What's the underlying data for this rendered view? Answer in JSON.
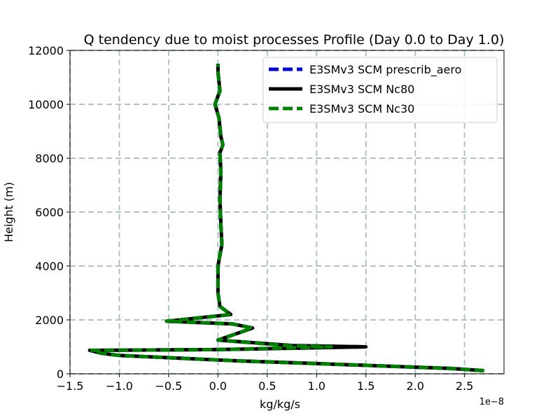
{
  "chart_data": {
    "type": "line",
    "title": "Q tendency due to moist processes Profile (Day 0.0 to Day 1.0)",
    "xlabel": "kg/kg/s",
    "ylabel": "Height (m)",
    "x_offset_label": "1e−8",
    "x_scale": 1e-08,
    "xlim": [
      -1.5,
      2.9
    ],
    "ylim": [
      0,
      12000
    ],
    "x_ticks": [
      -1.5,
      -1.0,
      -0.5,
      0.0,
      0.5,
      1.0,
      1.5,
      2.0,
      2.5
    ],
    "x_tick_labels": [
      "−1.5",
      "−1.0",
      "−0.5",
      "0.0",
      "0.5",
      "1.0",
      "1.5",
      "2.0",
      "2.5"
    ],
    "y_ticks": [
      0,
      2000,
      4000,
      6000,
      8000,
      10000,
      12000
    ],
    "y_tick_labels": [
      "0",
      "2000",
      "4000",
      "6000",
      "8000",
      "10000",
      "12000"
    ],
    "grid": true,
    "legend_position": "top-right",
    "series": [
      {
        "name": "E3SMv3 SCM prescrib_aero",
        "color": "#0000cc",
        "dash": "dashed",
        "x": [
          2.68,
          2.35,
          1.0,
          0.2,
          -1.0,
          -1.18,
          -1.3,
          0.0,
          1.5,
          0.75,
          0.0,
          0.35,
          0.15,
          -0.52,
          0.13,
          0.02,
          0.0,
          0.0,
          0.02,
          0.04,
          0.03,
          0.02,
          0.03,
          0.02,
          0.05,
          0.03,
          0.01,
          -0.03,
          0.02,
          0.0,
          0.0
        ],
        "y": [
          120,
          200,
          380,
          480,
          680,
          760,
          870,
          900,
          1000,
          1050,
          1250,
          1700,
          1850,
          1950,
          2200,
          2500,
          3000,
          4000,
          4400,
          4800,
          5500,
          6500,
          7500,
          8200,
          8500,
          8800,
          9500,
          10000,
          10500,
          11200,
          11500
        ]
      },
      {
        "name": "E3SMv3 SCM Nc80",
        "color": "#000000",
        "dash": "solid",
        "x": [
          2.68,
          2.35,
          1.0,
          0.2,
          -1.0,
          -1.18,
          -1.3,
          0.0,
          1.5,
          0.75,
          0.0,
          0.35,
          0.15,
          -0.52,
          0.13,
          0.02,
          0.0,
          0.0,
          0.02,
          0.04,
          0.03,
          0.02,
          0.03,
          0.02,
          0.05,
          0.03,
          0.01,
          -0.03,
          0.02,
          0.0,
          0.0
        ],
        "y": [
          120,
          200,
          380,
          480,
          680,
          760,
          870,
          900,
          1000,
          1050,
          1250,
          1700,
          1850,
          1950,
          2200,
          2500,
          3000,
          4000,
          4400,
          4800,
          5500,
          6500,
          7500,
          8200,
          8500,
          8800,
          9500,
          10000,
          10500,
          11200,
          11500
        ]
      },
      {
        "name": "E3SMv3 SCM Nc30",
        "color": "#007f00",
        "dash": "dashed",
        "x": [
          2.7,
          2.35,
          1.0,
          0.2,
          -1.0,
          -1.18,
          -1.28,
          0.0,
          1.15,
          0.7,
          0.0,
          0.35,
          0.15,
          -0.52,
          0.13,
          0.02,
          0.0,
          0.0,
          0.02,
          0.04,
          0.03,
          0.02,
          0.03,
          0.02,
          0.05,
          0.03,
          0.01,
          -0.03,
          0.02,
          0.0,
          0.0
        ],
        "y": [
          120,
          200,
          380,
          480,
          680,
          760,
          870,
          900,
          1000,
          1050,
          1250,
          1700,
          1850,
          1950,
          2200,
          2500,
          3000,
          4000,
          4400,
          4800,
          5500,
          6500,
          7500,
          8200,
          8500,
          8800,
          9500,
          10000,
          10500,
          11200,
          11500
        ]
      }
    ]
  }
}
